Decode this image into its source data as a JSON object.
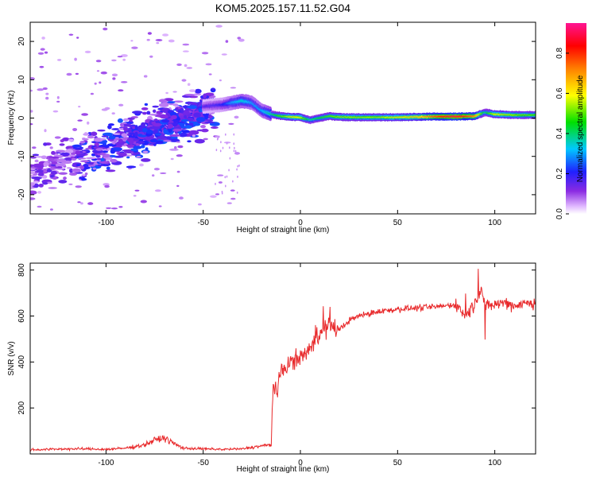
{
  "title": "KOM5.2025.157.11.52.G04",
  "chart_data": [
    {
      "type": "heatmap",
      "xlabel": "Height of straight line (km)",
      "ylabel": "Frequency (Hz)",
      "xlim": [
        -139,
        121
      ],
      "ylim": [
        -25,
        25
      ],
      "xticks": [
        -100,
        -50,
        0,
        50,
        100
      ],
      "yticks": [
        -20,
        -10,
        0,
        10,
        20
      ],
      "colorbar": {
        "label": "Normalized spectral amplitude",
        "range": [
          0.0,
          0.95
        ],
        "ticks": [
          0.0,
          0.2,
          0.4,
          0.6,
          0.8
        ]
      },
      "ridge": {
        "x": [
          -50,
          -40,
          -35,
          -30,
          -25,
          -20,
          -15,
          -10,
          -5,
          0,
          5,
          10,
          15,
          20,
          30,
          40,
          50,
          60,
          70,
          80,
          90,
          95,
          100,
          110,
          121
        ],
        "freq": [
          3,
          3.5,
          4,
          4.5,
          4,
          2,
          1,
          0.5,
          0.3,
          0.2,
          -0.5,
          0,
          0.5,
          0.3,
          0.2,
          0.2,
          0.2,
          0.3,
          0.4,
          0.4,
          0.5,
          1.5,
          1,
          0.8,
          0.8
        ],
        "amplitude": [
          0.15,
          0.2,
          0.3,
          0.35,
          0.3,
          0.3,
          0.4,
          0.5,
          0.6,
          0.6,
          0.4,
          0.45,
          0.5,
          0.55,
          0.55,
          0.55,
          0.6,
          0.65,
          0.8,
          0.9,
          0.75,
          0.4,
          0.6,
          0.55,
          0.5
        ]
      }
    },
    {
      "type": "line",
      "xlabel": "Height of straight line (km)",
      "ylabel": "SNR (v/v)",
      "xlim": [
        -139,
        121
      ],
      "ylim": [
        0,
        830
      ],
      "xticks": [
        -100,
        -50,
        0,
        50,
        100
      ],
      "yticks": [
        200,
        400,
        600,
        800
      ],
      "series": [
        {
          "color": "#e8282a",
          "x": [
            -139,
            -130,
            -120,
            -110,
            -100,
            -90,
            -80,
            -75,
            -70,
            -65,
            -60,
            -50,
            -40,
            -30,
            -20,
            -15,
            -14,
            -12,
            -10,
            -5,
            0,
            5,
            10,
            15,
            20,
            25,
            30,
            40,
            50,
            60,
            70,
            80,
            85,
            90,
            93,
            95,
            100,
            105,
            110,
            115,
            121
          ],
          "y": [
            18,
            20,
            22,
            22,
            20,
            25,
            40,
            60,
            70,
            45,
            25,
            22,
            20,
            22,
            35,
            40,
            310,
            260,
            360,
            400,
            420,
            460,
            520,
            560,
            540,
            580,
            600,
            620,
            630,
            635,
            640,
            650,
            600,
            660,
            720,
            640,
            650,
            660,
            645,
            655,
            660
          ]
        }
      ]
    }
  ]
}
